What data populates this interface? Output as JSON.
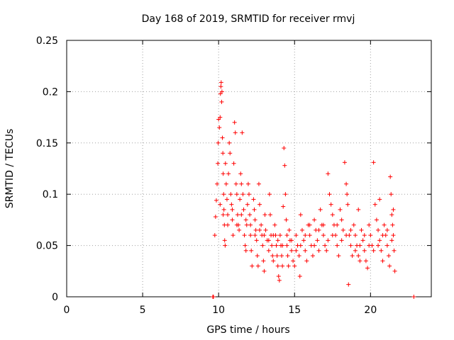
{
  "chart_data": {
    "type": "scatter",
    "title": "Day 168 of 2019, SRMTID for receiver rmvj",
    "xlabel": "GPS time / hours",
    "ylabel": "SRMTID / TECUs",
    "xlim": [
      0,
      24
    ],
    "ylim": [
      0,
      0.25
    ],
    "xticks": [
      0,
      5,
      10,
      15,
      20
    ],
    "yticks": [
      0,
      0.05,
      0.1,
      0.15,
      0.2,
      0.25
    ],
    "ytick_labels": [
      "0",
      "0.05",
      "0.1",
      "0.15",
      "0.2",
      "0.25"
    ],
    "grid": true,
    "marker": "+",
    "color": "#ff0000",
    "series": [
      {
        "points": [
          [
            9.62,
            0.0
          ],
          [
            9.66,
            0.0
          ],
          [
            22.85,
            0.0
          ],
          [
            9.75,
            0.06
          ],
          [
            9.8,
            0.078
          ],
          [
            9.85,
            0.094
          ],
          [
            9.9,
            0.11
          ],
          [
            9.95,
            0.13
          ],
          [
            9.97,
            0.15
          ],
          [
            10.0,
            0.173
          ],
          [
            10.05,
            0.165
          ],
          [
            10.1,
            0.175
          ],
          [
            10.12,
            0.198
          ],
          [
            10.15,
            0.205
          ],
          [
            10.17,
            0.209
          ],
          [
            10.2,
            0.19
          ],
          [
            10.22,
            0.2
          ],
          [
            10.25,
            0.155
          ],
          [
            10.28,
            0.14
          ],
          [
            10.3,
            0.12
          ],
          [
            10.33,
            0.1
          ],
          [
            10.35,
            0.085
          ],
          [
            10.38,
            0.07
          ],
          [
            10.4,
            0.055
          ],
          [
            10.43,
            0.05
          ],
          [
            10.45,
            0.13
          ],
          [
            10.5,
            0.11
          ],
          [
            10.55,
            0.095
          ],
          [
            10.6,
            0.08
          ],
          [
            10.65,
            0.12
          ],
          [
            10.7,
            0.15
          ],
          [
            10.75,
            0.14
          ],
          [
            10.8,
            0.1
          ],
          [
            10.85,
            0.09
          ],
          [
            10.9,
            0.075
          ],
          [
            10.95,
            0.06
          ],
          [
            11.0,
            0.13
          ],
          [
            11.05,
            0.17
          ],
          [
            11.1,
            0.16
          ],
          [
            11.15,
            0.11
          ],
          [
            11.2,
            0.1
          ],
          [
            11.25,
            0.08
          ],
          [
            11.3,
            0.07
          ],
          [
            11.35,
            0.065
          ],
          [
            11.4,
            0.095
          ],
          [
            11.45,
            0.12
          ],
          [
            11.5,
            0.11
          ],
          [
            11.55,
            0.16
          ],
          [
            11.6,
            0.1
          ],
          [
            11.65,
            0.085
          ],
          [
            11.7,
            0.06
          ],
          [
            11.75,
            0.05
          ],
          [
            11.8,
            0.045
          ],
          [
            11.85,
            0.07
          ],
          [
            11.9,
            0.09
          ],
          [
            11.95,
            0.11
          ],
          [
            12.0,
            0.1
          ],
          [
            12.05,
            0.08
          ],
          [
            12.1,
            0.06
          ],
          [
            12.15,
            0.045
          ],
          [
            12.2,
            0.03
          ],
          [
            12.3,
            0.095
          ],
          [
            12.35,
            0.085
          ],
          [
            12.4,
            0.075
          ],
          [
            12.45,
            0.065
          ],
          [
            12.5,
            0.055
          ],
          [
            12.55,
            0.04
          ],
          [
            12.6,
            0.03
          ],
          [
            12.65,
            0.11
          ],
          [
            12.7,
            0.09
          ],
          [
            12.8,
            0.07
          ],
          [
            12.85,
            0.06
          ],
          [
            12.9,
            0.05
          ],
          [
            12.95,
            0.035
          ],
          [
            13.0,
            0.025
          ],
          [
            13.05,
            0.08
          ],
          [
            13.1,
            0.065
          ],
          [
            13.2,
            0.055
          ],
          [
            13.3,
            0.045
          ],
          [
            13.35,
            0.1
          ],
          [
            13.4,
            0.08
          ],
          [
            13.45,
            0.06
          ],
          [
            13.5,
            0.05
          ],
          [
            13.55,
            0.04
          ],
          [
            13.6,
            0.035
          ],
          [
            13.7,
            0.07
          ],
          [
            13.75,
            0.06
          ],
          [
            13.8,
            0.05
          ],
          [
            13.85,
            0.04
          ],
          [
            13.9,
            0.03
          ],
          [
            13.95,
            0.02
          ],
          [
            14.0,
            0.016
          ],
          [
            14.05,
            0.06
          ],
          [
            14.1,
            0.05
          ],
          [
            14.15,
            0.04
          ],
          [
            14.2,
            0.03
          ],
          [
            14.25,
            0.088
          ],
          [
            14.3,
            0.145
          ],
          [
            14.35,
            0.128
          ],
          [
            14.4,
            0.1
          ],
          [
            14.45,
            0.075
          ],
          [
            14.5,
            0.05
          ],
          [
            14.55,
            0.04
          ],
          [
            14.6,
            0.03
          ],
          [
            14.65,
            0.065
          ],
          [
            14.7,
            0.055
          ],
          [
            14.8,
            0.045
          ],
          [
            14.9,
            0.035
          ],
          [
            15.0,
            0.03
          ],
          [
            15.1,
            0.06
          ],
          [
            15.2,
            0.05
          ],
          [
            15.3,
            0.04
          ],
          [
            15.35,
            0.02
          ],
          [
            15.4,
            0.08
          ],
          [
            15.5,
            0.065
          ],
          [
            15.6,
            0.055
          ],
          [
            15.7,
            0.045
          ],
          [
            15.8,
            0.035
          ],
          [
            15.9,
            0.07
          ],
          [
            16.0,
            0.06
          ],
          [
            16.1,
            0.05
          ],
          [
            16.2,
            0.04
          ],
          [
            16.3,
            0.075
          ],
          [
            16.4,
            0.065
          ],
          [
            16.5,
            0.055
          ],
          [
            16.6,
            0.045
          ],
          [
            16.7,
            0.085
          ],
          [
            16.8,
            0.07
          ],
          [
            16.9,
            0.06
          ],
          [
            17.0,
            0.05
          ],
          [
            17.1,
            0.045
          ],
          [
            17.2,
            0.12
          ],
          [
            17.3,
            0.1
          ],
          [
            17.4,
            0.09
          ],
          [
            17.5,
            0.08
          ],
          [
            17.6,
            0.07
          ],
          [
            17.7,
            0.06
          ],
          [
            17.8,
            0.05
          ],
          [
            17.9,
            0.04
          ],
          [
            18.0,
            0.085
          ],
          [
            18.1,
            0.075
          ],
          [
            18.2,
            0.065
          ],
          [
            18.3,
            0.131
          ],
          [
            18.4,
            0.11
          ],
          [
            18.45,
            0.1
          ],
          [
            18.5,
            0.09
          ],
          [
            18.55,
            0.012
          ],
          [
            18.6,
            0.06
          ],
          [
            18.7,
            0.05
          ],
          [
            18.8,
            0.04
          ],
          [
            18.9,
            0.07
          ],
          [
            19.0,
            0.06
          ],
          [
            19.1,
            0.05
          ],
          [
            19.2,
            0.04
          ],
          [
            19.3,
            0.035
          ],
          [
            19.4,
            0.065
          ],
          [
            19.5,
            0.055
          ],
          [
            19.6,
            0.045
          ],
          [
            19.7,
            0.035
          ],
          [
            19.8,
            0.028
          ],
          [
            19.9,
            0.07
          ],
          [
            20.0,
            0.06
          ],
          [
            20.1,
            0.05
          ],
          [
            20.2,
            0.131
          ],
          [
            20.3,
            0.09
          ],
          [
            20.4,
            0.075
          ],
          [
            20.5,
            0.065
          ],
          [
            20.6,
            0.055
          ],
          [
            20.7,
            0.045
          ],
          [
            20.8,
            0.035
          ],
          [
            20.9,
            0.07
          ],
          [
            21.0,
            0.06
          ],
          [
            21.1,
            0.05
          ],
          [
            21.2,
            0.04
          ],
          [
            21.25,
            0.03
          ],
          [
            21.3,
            0.117
          ],
          [
            21.35,
            0.1
          ],
          [
            21.4,
            0.08
          ],
          [
            21.45,
            0.07
          ],
          [
            21.5,
            0.06
          ],
          [
            21.55,
            0.045
          ],
          [
            21.6,
            0.025
          ],
          [
            10.1,
            0.09
          ],
          [
            10.3,
            0.08
          ],
          [
            10.6,
            0.07
          ],
          [
            10.9,
            0.085
          ],
          [
            11.2,
            0.07
          ],
          [
            11.5,
            0.08
          ],
          [
            11.8,
            0.075
          ],
          [
            12.1,
            0.07
          ],
          [
            12.4,
            0.06
          ],
          [
            12.7,
            0.065
          ],
          [
            13.0,
            0.06
          ],
          [
            13.3,
            0.055
          ],
          [
            13.6,
            0.06
          ],
          [
            13.9,
            0.055
          ],
          [
            14.2,
            0.05
          ],
          [
            14.5,
            0.06
          ],
          [
            14.8,
            0.055
          ],
          [
            15.1,
            0.045
          ],
          [
            15.4,
            0.05
          ],
          [
            15.7,
            0.06
          ],
          [
            16.0,
            0.07
          ],
          [
            16.3,
            0.05
          ],
          [
            16.6,
            0.065
          ],
          [
            16.9,
            0.07
          ],
          [
            17.2,
            0.055
          ],
          [
            17.5,
            0.06
          ],
          [
            17.8,
            0.07
          ],
          [
            18.1,
            0.055
          ],
          [
            18.4,
            0.06
          ],
          [
            18.7,
            0.065
          ],
          [
            19.0,
            0.045
          ],
          [
            19.3,
            0.05
          ],
          [
            19.6,
            0.06
          ],
          [
            19.9,
            0.05
          ],
          [
            20.2,
            0.045
          ],
          [
            20.5,
            0.05
          ],
          [
            20.8,
            0.06
          ],
          [
            21.1,
            0.065
          ],
          [
            21.4,
            0.055
          ],
          [
            21.5,
            0.085
          ],
          [
            20.6,
            0.095
          ],
          [
            19.2,
            0.085
          ]
        ]
      }
    ]
  }
}
